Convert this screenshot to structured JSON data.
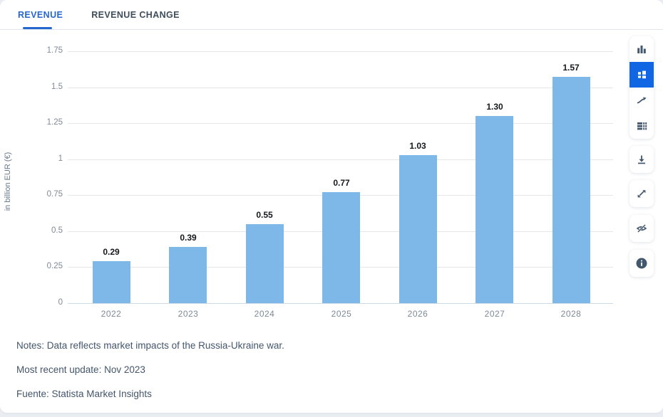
{
  "tabs": [
    {
      "label": "REVENUE",
      "active": true
    },
    {
      "label": "REVENUE CHANGE",
      "active": false
    }
  ],
  "chart_data": {
    "type": "bar",
    "categories": [
      "2022",
      "2023",
      "2024",
      "2025",
      "2026",
      "2027",
      "2028"
    ],
    "values": [
      0.29,
      0.39,
      0.55,
      0.77,
      1.03,
      1.3,
      1.57
    ],
    "value_labels": [
      "0.29",
      "0.39",
      "0.55",
      "0.77",
      "1.03",
      "1.30",
      "1.57"
    ],
    "title": "",
    "xlabel": "",
    "ylabel": "in billion EUR (€)",
    "ylim": [
      0,
      1.75
    ],
    "yticks": [
      0,
      0.25,
      0.5,
      0.75,
      1,
      1.25,
      1.5,
      1.75
    ],
    "ytick_labels": [
      "0",
      "0.25",
      "0.5",
      "0.75",
      "1",
      "1.25",
      "1.5",
      "1.75"
    ],
    "grid": "horizontal",
    "legend": "none",
    "bar_color": "#7db8e8"
  },
  "notes": {
    "line1": "Notes: Data reflects market impacts of the Russia-Ukraine war.",
    "line2": "Most recent update: Nov 2023",
    "line3": "Fuente: Statista Market Insights"
  },
  "toolbar": {
    "chart_types": [
      {
        "icon": "column-chart-icon",
        "active": false
      },
      {
        "icon": "blocks-chart-icon",
        "active": true
      },
      {
        "icon": "trend-line-icon",
        "active": false
      },
      {
        "icon": "table-icon",
        "active": false
      }
    ],
    "actions": [
      {
        "icon": "download-icon"
      },
      {
        "icon": "expand-icon"
      },
      {
        "icon": "eye-off-icon"
      },
      {
        "icon": "info-icon"
      }
    ]
  },
  "colors": {
    "accent": "#1166e3",
    "tab_blue": "#2667cf",
    "bar": "#7db8e8",
    "grid": "#e6e6e6",
    "axis_line": "#ccd9e6",
    "icon": "#43586e"
  }
}
